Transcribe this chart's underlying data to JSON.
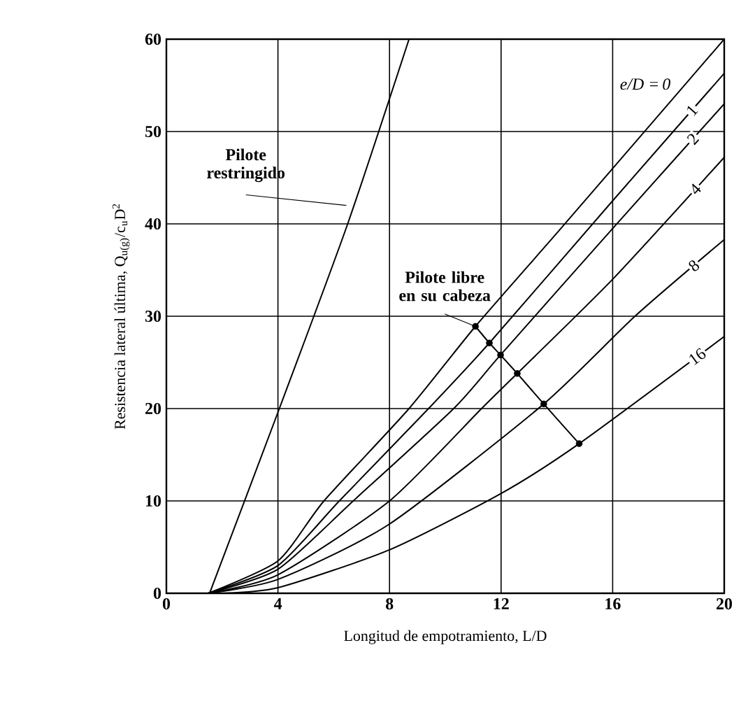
{
  "chart_data": {
    "type": "line",
    "xlabel": "Longitud de empotramiento, L/D",
    "ylabel": "Resistencia lateral última, Q$_{u(g)}$/c$_{u}$D$^{2}$",
    "legend_title": "e/D =",
    "xlim": [
      0,
      20
    ],
    "ylim": [
      0,
      60
    ],
    "xticks": [
      0,
      4,
      8,
      12,
      16,
      20
    ],
    "yticks": [
      0,
      10,
      20,
      30,
      40,
      50,
      60
    ],
    "grid": true,
    "line_style": "solid",
    "marker": "none",
    "series": [
      {
        "color": "#000000",
        "x": [
          1.55,
          4.05,
          6.5,
          8.7
        ],
        "values": [
          0,
          20,
          40,
          60
        ]
      },
      {
        "name": "0",
        "color": "#000000",
        "x": [
          1.5,
          4,
          5.65,
          8.7,
          11.08,
          14,
          17,
          20
        ],
        "values": [
          0,
          3.5,
          10,
          20,
          28.9,
          39,
          49.5,
          60
        ]
      },
      {
        "name": "1",
        "color": "#000000",
        "x": [
          1.5,
          4,
          6.2,
          9.4,
          11.58,
          16,
          20
        ],
        "values": [
          0,
          3,
          10,
          20,
          27.1,
          42.5,
          56.3
        ]
      },
      {
        "name": "2",
        "color": "#000000",
        "x": [
          1.5,
          4,
          6.7,
          10.3,
          11.98,
          16,
          20
        ],
        "values": [
          0,
          2.6,
          10,
          20,
          25.8,
          39.5,
          53
        ]
      },
      {
        "name": "4",
        "color": "#000000",
        "x": [
          1.5,
          4,
          8,
          11.3,
          12.58,
          16,
          20
        ],
        "values": [
          0,
          2,
          10,
          20,
          23.8,
          34,
          47.2
        ]
      },
      {
        "name": "8",
        "color": "#000000",
        "x": [
          1.5,
          4,
          8,
          13.53,
          16.8,
          20
        ],
        "values": [
          0,
          1.5,
          7.5,
          20.5,
          30,
          38.3
        ]
      },
      {
        "name": "16",
        "color": "#000000",
        "x": [
          2,
          4,
          8,
          12,
          14.8,
          20
        ],
        "values": [
          0,
          0.6,
          4.7,
          10.8,
          16.2,
          27.8
        ]
      },
      {
        "color": "#000000",
        "x": [
          11.08,
          11.58,
          11.98,
          12.58,
          13.53,
          14.8
        ],
        "values": [
          28.9,
          27.1,
          25.8,
          23.8,
          20.5,
          16.2
        ]
      },
      {
        "type": "scatter",
        "color": "#000000",
        "marker": "circle",
        "x": [
          11.08,
          11.58,
          11.98,
          12.58,
          13.53,
          14.8
        ],
        "values": [
          28.9,
          27.1,
          25.8,
          23.8,
          20.5,
          16.2
        ]
      }
    ],
    "annotations": [
      {
        "text": "Pilote restringido",
        "x": 6.45,
        "y": 42
      },
      {
        "text": "Pilote libre en su cabeza",
        "x": 11.08,
        "y": 28.9
      }
    ]
  }
}
